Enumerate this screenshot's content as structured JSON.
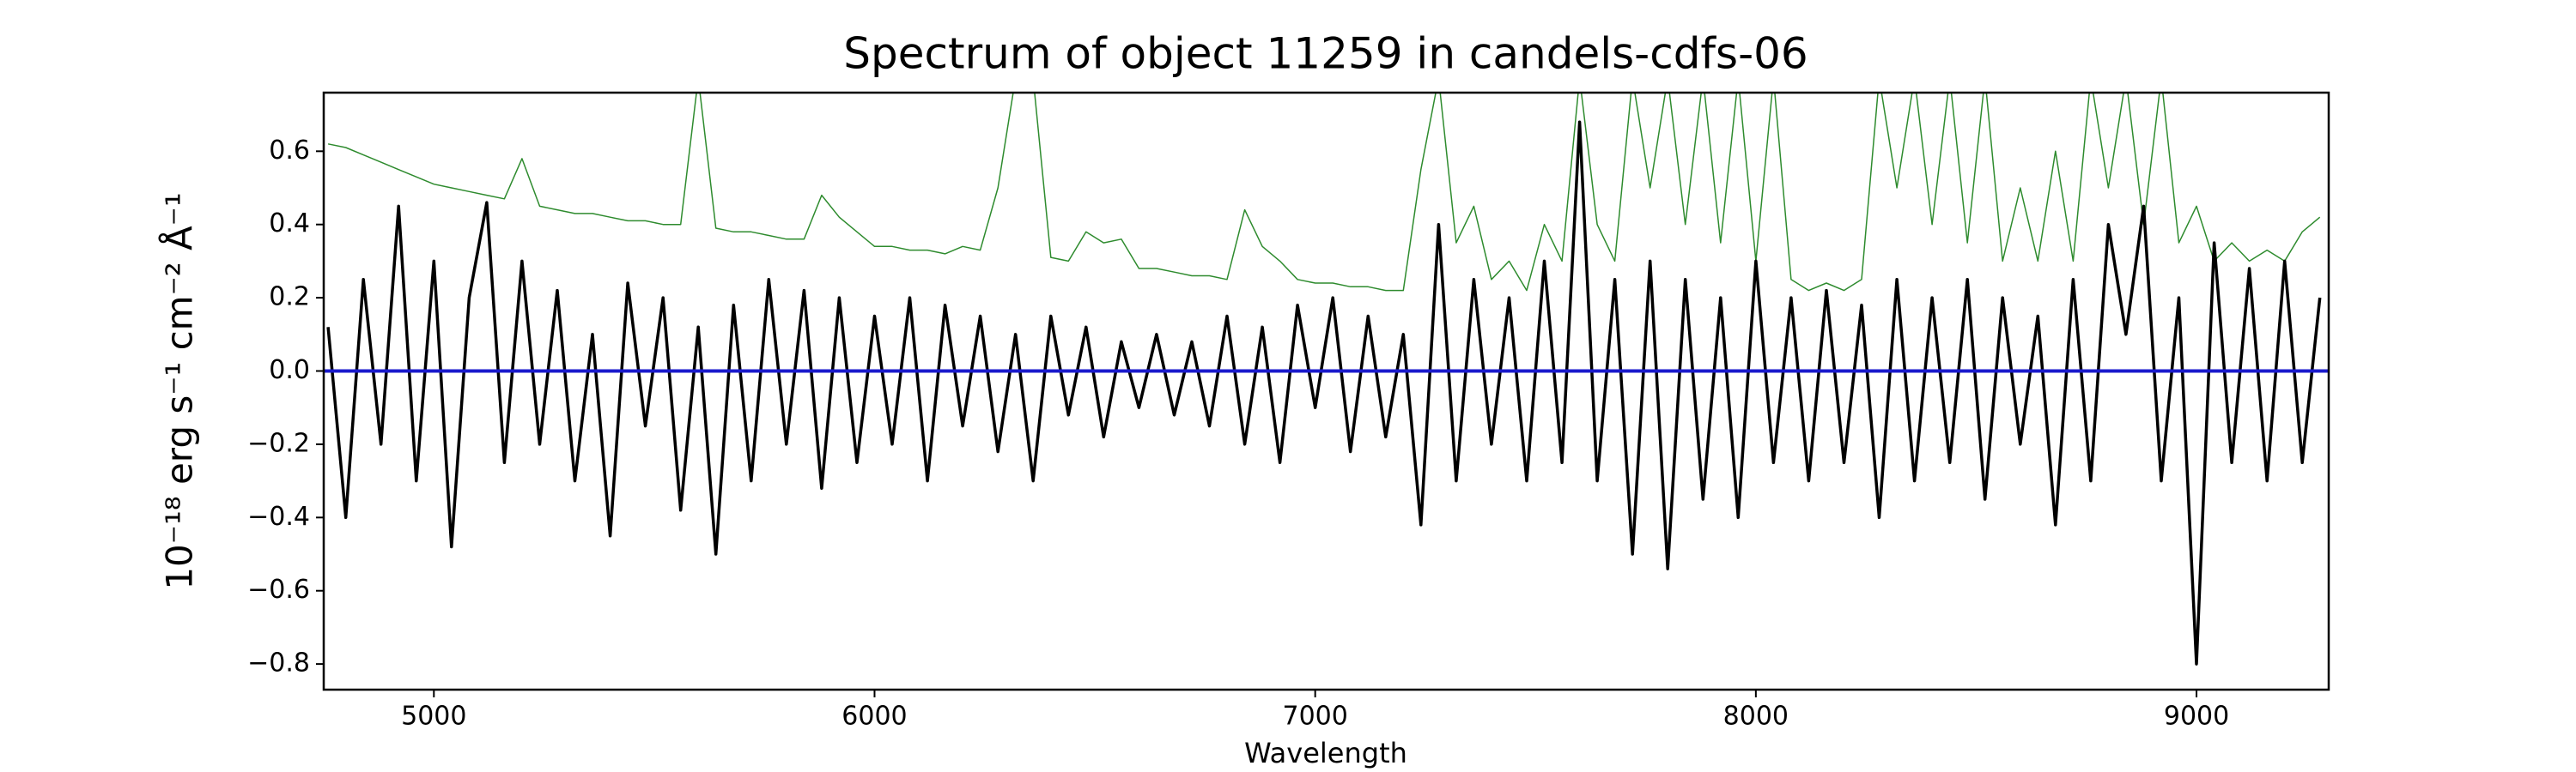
{
  "chart_data": {
    "type": "line",
    "title": "Spectrum of object 11259 in candels-cdfs-06",
    "xlabel": "Wavelength",
    "ylabel": "10⁻¹⁸ erg s⁻¹ cm⁻² Å⁻¹",
    "xlim": [
      4750,
      9300
    ],
    "ylim": [
      -0.87,
      0.76
    ],
    "xticks": [
      5000,
      6000,
      7000,
      8000,
      9000
    ],
    "yticks": [
      {
        "value": -0.8,
        "label": "−0.8"
      },
      {
        "value": -0.6,
        "label": "−0.6"
      },
      {
        "value": -0.4,
        "label": "−0.4"
      },
      {
        "value": -0.2,
        "label": "−0.2"
      },
      {
        "value": 0,
        "label": "0.0"
      },
      0.2,
      0.4,
      0.6
    ],
    "x": [
      4760,
      4800,
      4840,
      4880,
      4920,
      4960,
      5000,
      5040,
      5080,
      5120,
      5160,
      5200,
      5240,
      5280,
      5320,
      5360,
      5400,
      5440,
      5480,
      5520,
      5560,
      5600,
      5640,
      5680,
      5720,
      5760,
      5800,
      5840,
      5880,
      5920,
      5960,
      6000,
      6040,
      6080,
      6120,
      6160,
      6200,
      6240,
      6280,
      6320,
      6360,
      6400,
      6440,
      6480,
      6520,
      6560,
      6600,
      6640,
      6680,
      6720,
      6760,
      6800,
      6840,
      6880,
      6920,
      6960,
      7000,
      7040,
      7080,
      7120,
      7160,
      7200,
      7240,
      7280,
      7320,
      7360,
      7400,
      7440,
      7480,
      7520,
      7560,
      7600,
      7640,
      7680,
      7720,
      7760,
      7800,
      7840,
      7880,
      7920,
      7960,
      8000,
      8040,
      8080,
      8120,
      8160,
      8200,
      8240,
      8280,
      8320,
      8360,
      8400,
      8440,
      8480,
      8520,
      8560,
      8600,
      8640,
      8680,
      8720,
      8760,
      8800,
      8840,
      8880,
      8920,
      8960,
      9000,
      9040,
      9080,
      9120,
      9160,
      9200,
      9240,
      9280
    ],
    "series": [
      {
        "color": "#2e8b2e",
        "width": 1.5,
        "values": [
          0.62,
          0.61,
          0.59,
          0.57,
          0.55,
          0.53,
          0.51,
          0.5,
          0.49,
          0.48,
          0.47,
          0.58,
          0.45,
          0.44,
          0.43,
          0.43,
          0.42,
          0.41,
          0.41,
          0.4,
          0.4,
          0.8,
          0.39,
          0.38,
          0.38,
          0.37,
          0.36,
          0.36,
          0.48,
          0.42,
          0.38,
          0.34,
          0.34,
          0.33,
          0.33,
          0.32,
          0.34,
          0.33,
          0.5,
          0.8,
          0.8,
          0.31,
          0.3,
          0.38,
          0.35,
          0.36,
          0.28,
          0.28,
          0.27,
          0.26,
          0.26,
          0.25,
          0.44,
          0.34,
          0.3,
          0.25,
          0.24,
          0.24,
          0.23,
          0.23,
          0.22,
          0.22,
          0.55,
          0.8,
          0.35,
          0.45,
          0.25,
          0.3,
          0.22,
          0.4,
          0.3,
          0.8,
          0.4,
          0.3,
          0.8,
          0.5,
          0.8,
          0.4,
          0.8,
          0.35,
          0.8,
          0.3,
          0.8,
          0.25,
          0.22,
          0.24,
          0.22,
          0.25,
          0.8,
          0.5,
          0.8,
          0.4,
          0.8,
          0.35,
          0.8,
          0.3,
          0.5,
          0.3,
          0.6,
          0.3,
          0.8,
          0.5,
          0.8,
          0.4,
          0.8,
          0.35,
          0.45,
          0.3,
          0.35,
          0.3,
          0.33,
          0.3,
          0.38,
          0.42
        ]
      },
      {
        "color": "#000000",
        "width": 3.5,
        "values": [
          0.12,
          -0.4,
          0.25,
          -0.2,
          0.45,
          -0.3,
          0.3,
          -0.48,
          0.2,
          0.46,
          -0.25,
          0.3,
          -0.2,
          0.22,
          -0.3,
          0.1,
          -0.45,
          0.24,
          -0.15,
          0.2,
          -0.38,
          0.12,
          -0.5,
          0.18,
          -0.3,
          0.25,
          -0.2,
          0.22,
          -0.32,
          0.2,
          -0.25,
          0.15,
          -0.2,
          0.2,
          -0.3,
          0.18,
          -0.15,
          0.15,
          -0.22,
          0.1,
          -0.3,
          0.15,
          -0.12,
          0.12,
          -0.18,
          0.08,
          -0.1,
          0.1,
          -0.12,
          0.08,
          -0.15,
          0.15,
          -0.2,
          0.12,
          -0.25,
          0.18,
          -0.1,
          0.2,
          -0.22,
          0.15,
          -0.18,
          0.1,
          -0.42,
          0.4,
          -0.3,
          0.25,
          -0.2,
          0.2,
          -0.3,
          0.3,
          -0.25,
          0.68,
          -0.3,
          0.25,
          -0.5,
          0.3,
          -0.54,
          0.25,
          -0.35,
          0.2,
          -0.4,
          0.3,
          -0.25,
          0.2,
          -0.3,
          0.22,
          -0.25,
          0.18,
          -0.4,
          0.25,
          -0.3,
          0.2,
          -0.25,
          0.25,
          -0.35,
          0.2,
          -0.2,
          0.15,
          -0.42,
          0.25,
          -0.3,
          0.4,
          0.1,
          0.45,
          -0.3,
          0.2,
          -0.8,
          0.35,
          -0.25,
          0.28,
          -0.3,
          0.3,
          -0.25,
          0.2
        ]
      },
      {
        "color": "#1a1acc",
        "width": 4,
        "x": [
          4750,
          9300
        ],
        "values": [
          0,
          0
        ]
      }
    ]
  }
}
